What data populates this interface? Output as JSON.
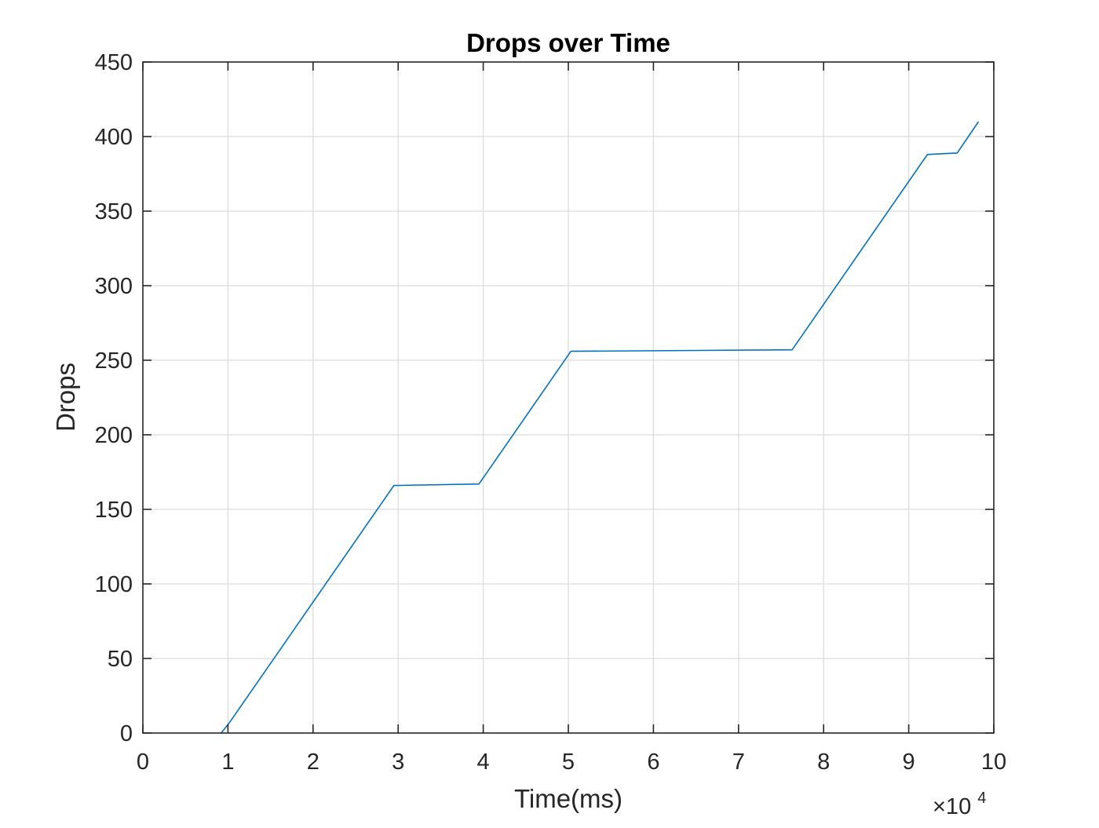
{
  "chart_data": {
    "type": "line",
    "title": "Drops over Time",
    "xlabel": "Time(ms)",
    "ylabel": "Drops",
    "x_multiplier_label": {
      "base": "×10",
      "exponent": "4"
    },
    "xlim": [
      0,
      10
    ],
    "ylim": [
      0,
      450
    ],
    "xticks": [
      0,
      1,
      2,
      3,
      4,
      5,
      6,
      7,
      8,
      9,
      10
    ],
    "xtick_labels": [
      "0",
      "1",
      "2",
      "3",
      "4",
      "5",
      "6",
      "7",
      "8",
      "9",
      "10"
    ],
    "yticks": [
      0,
      50,
      100,
      150,
      200,
      250,
      300,
      350,
      400,
      450
    ],
    "ytick_labels": [
      "0",
      "50",
      "100",
      "150",
      "200",
      "250",
      "300",
      "350",
      "400",
      "450"
    ],
    "grid": true,
    "series": [
      {
        "color": "#0072bd",
        "x": [
          0.92,
          0.99,
          1.03,
          2.95,
          3.95,
          5.03,
          7.63,
          9.22,
          9.57,
          9.82
        ],
        "y": [
          0,
          5,
          8,
          166,
          167,
          256,
          257,
          388,
          389,
          410
        ]
      }
    ]
  }
}
